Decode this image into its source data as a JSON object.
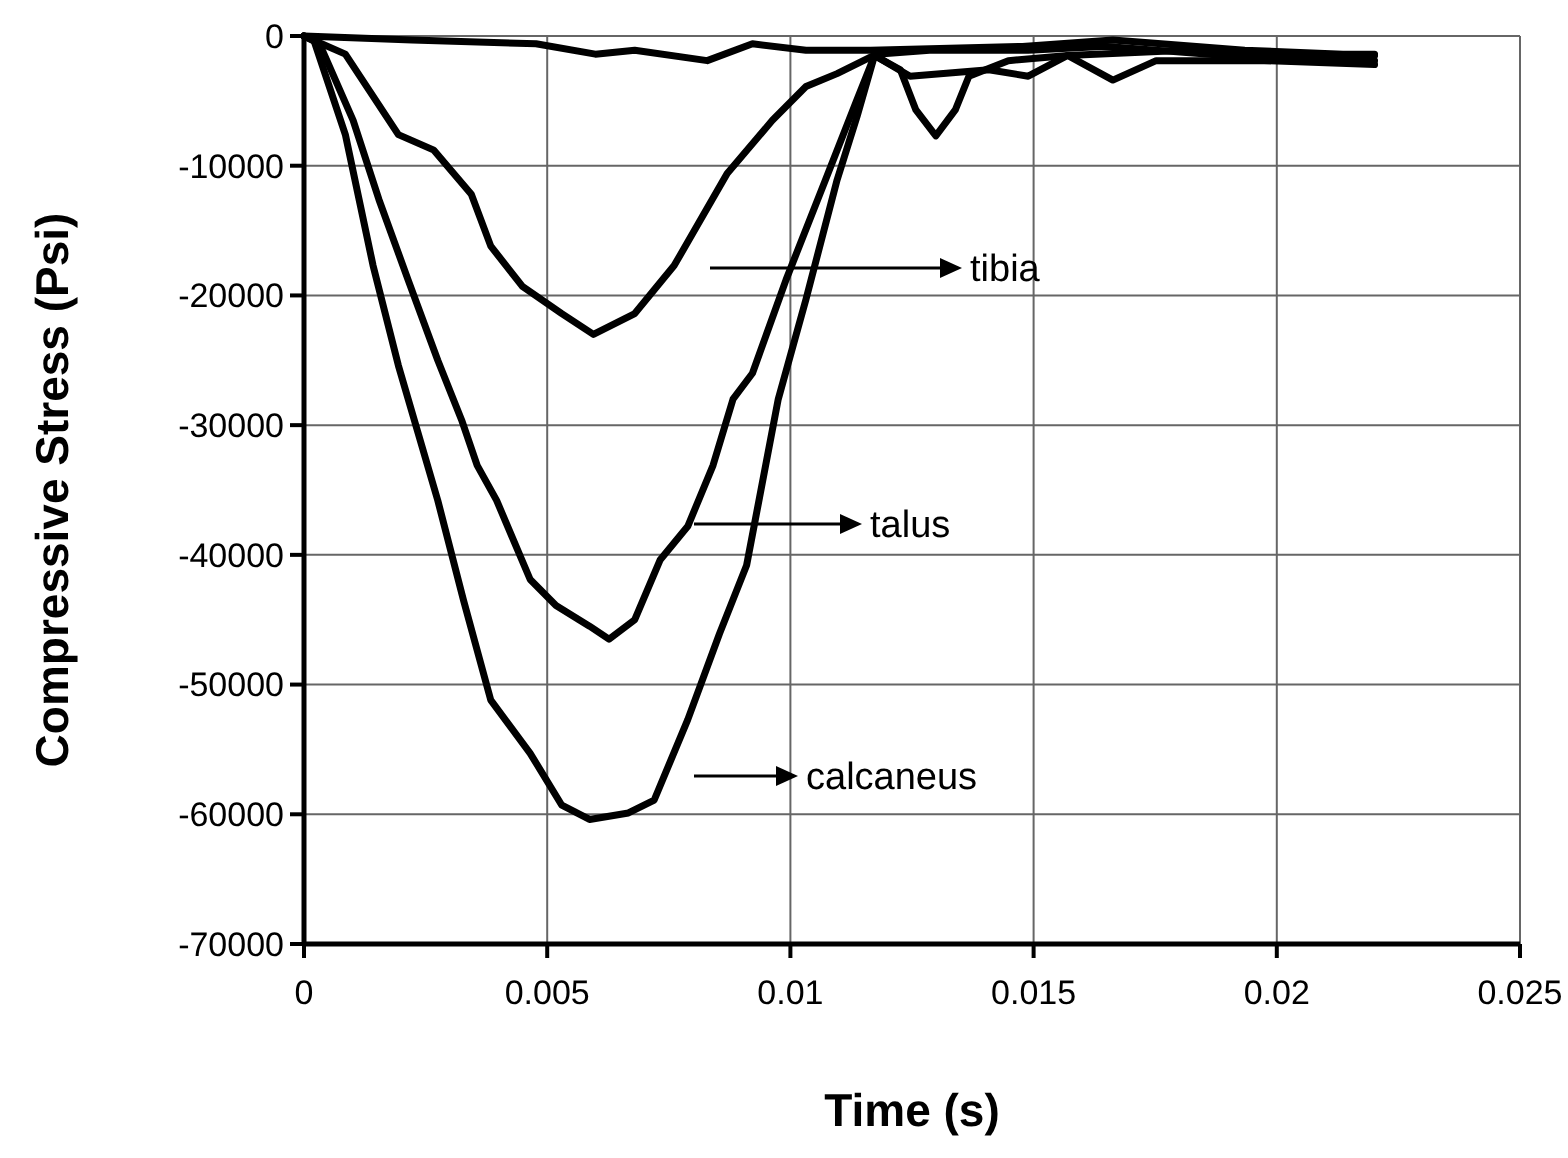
{
  "chart_data": {
    "type": "line",
    "xlabel": "Time (s)",
    "ylabel": "Compressive Stress (Psi)",
    "xlim": [
      0,
      0.025
    ],
    "xticks": [
      0,
      0.005,
      0.01,
      0.015,
      0.02,
      0.025
    ],
    "ylim": [
      -70000,
      0
    ],
    "yticks": [
      -70000,
      -60000,
      -50000,
      -40000,
      -30000,
      -20000,
      -10000,
      0
    ],
    "grid": true,
    "marker": "none",
    "line_style": "solid",
    "series": [
      {
        "color": "#000000",
        "x": [
          0,
          0.00222,
          0.00477,
          0.00599,
          0.0068,
          0.00829,
          0.00922,
          0.01032,
          0.01165,
          0.01477,
          0.01663,
          0.01934,
          0.02136,
          0.02201
        ],
        "values": [
          0,
          -300,
          -600,
          -1400,
          -1100,
          -1900,
          -600,
          -1100,
          -1100,
          -800,
          -300,
          -1100,
          -1400,
          -1400
        ]
      },
      {
        "color": "#000000",
        "x": [
          0,
          0.00085,
          0.00194,
          0.00267,
          0.00344,
          0.00384,
          0.00449,
          0.0053,
          0.00595,
          0.0068,
          0.00761,
          0.0087,
          0.00963,
          0.01032,
          0.01096,
          0.01177,
          0.01286,
          0.01489,
          0.0165,
          0.01893,
          0.02095,
          0.02201
        ],
        "values": [
          0,
          -1400,
          -7600,
          -8800,
          -12200,
          -16200,
          -19300,
          -21400,
          -23000,
          -21400,
          -17700,
          -10600,
          -6500,
          -3900,
          -2900,
          -1400,
          -1100,
          -1100,
          -800,
          -1500,
          -1500,
          -1500
        ]
      },
      {
        "color": "#000000",
        "x": [
          0,
          0.00032,
          0.00101,
          0.00154,
          0.00214,
          0.00275,
          0.00324,
          0.00356,
          0.00396,
          0.00465,
          0.00518,
          0.00587,
          0.00627,
          0.0068,
          0.00732,
          0.00789,
          0.00841,
          0.00882,
          0.00922,
          0.00991,
          0.01072,
          0.01137,
          0.01173,
          0.01226,
          0.01258,
          0.01299,
          0.01339,
          0.01367,
          0.01448,
          0.0157,
          0.01812,
          0.02015,
          0.02201
        ],
        "values": [
          0,
          -600,
          -6500,
          -12600,
          -18800,
          -25000,
          -29600,
          -33100,
          -35800,
          -41900,
          -43900,
          -45500,
          -46500,
          -45000,
          -40400,
          -37800,
          -33100,
          -28000,
          -26000,
          -18800,
          -11100,
          -4900,
          -1500,
          -2600,
          -5700,
          -7700,
          -5700,
          -3100,
          -1900,
          -1500,
          -1100,
          -1500,
          -1900
        ]
      },
      {
        "color": "#000000",
        "x": [
          0,
          0.0002,
          0.00085,
          0.00142,
          0.00194,
          0.00275,
          0.00328,
          0.00384,
          0.00465,
          0.0053,
          0.00587,
          0.00667,
          0.0072,
          0.00789,
          0.00854,
          0.0091,
          0.00975,
          0.01032,
          0.01096,
          0.01137,
          0.01173,
          0.01246,
          0.01408,
          0.01489,
          0.0157,
          0.01663,
          0.01752,
          0.01974,
          0.02201
        ],
        "values": [
          0,
          -300,
          -7600,
          -17700,
          -25400,
          -35800,
          -43500,
          -51200,
          -55300,
          -59300,
          -60400,
          -59900,
          -58900,
          -52700,
          -46100,
          -40800,
          -28000,
          -20300,
          -11100,
          -6200,
          -1500,
          -3100,
          -2600,
          -3100,
          -1500,
          -3400,
          -1900,
          -1900,
          -2200
        ]
      }
    ],
    "annotations": [
      "tibia",
      "talus",
      "calcaneus"
    ]
  }
}
